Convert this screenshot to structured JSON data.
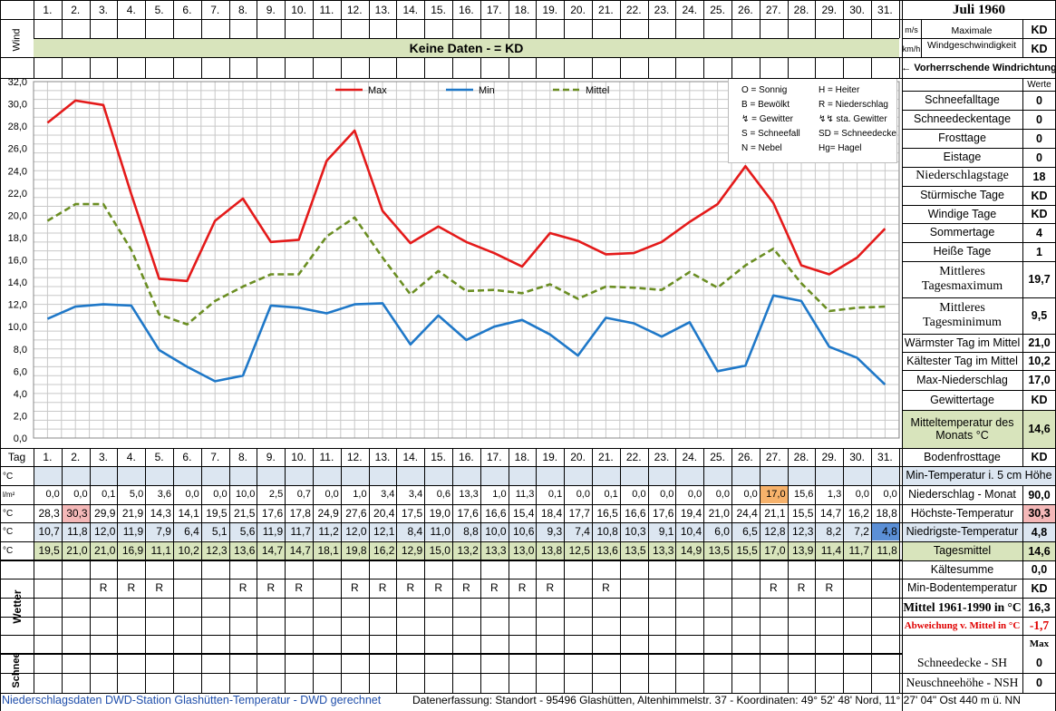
{
  "header": {
    "title": "Juli 1960",
    "days": [
      "1.",
      "2.",
      "3.",
      "4.",
      "5.",
      "6.",
      "7.",
      "8.",
      "9.",
      "10.",
      "11.",
      "12.",
      "13.",
      "14.",
      "15.",
      "16.",
      "17.",
      "18.",
      "19.",
      "20.",
      "21.",
      "22.",
      "23.",
      "24.",
      "25.",
      "26.",
      "27.",
      "28.",
      "29.",
      "30.",
      "31."
    ],
    "wind_label": "Wind",
    "unit_ms": "m/s",
    "unit_kmh": "km/h",
    "max_wind_label": "Maximale Windgeschwindigkeit",
    "max_wind_ms": "KD",
    "max_wind_kmh": "KD",
    "no_data_banner": "Keine Daten -  = KD",
    "wind_direction_label": "← Vorherrschende Windrichtung"
  },
  "legend": {
    "max": "Max",
    "min": "Min",
    "mittel": "Mittel",
    "symbols": [
      [
        "O = Sonnig",
        "H = Heiter"
      ],
      [
        "B = Bewölkt",
        "R = Niederschlag"
      ],
      [
        "= Gewitter",
        "sta. Gewitter"
      ],
      [
        "S = Schneefall",
        "SD = Schneedecke"
      ],
      [
        "N = Nebel",
        "Hg= Hagel"
      ]
    ]
  },
  "colors": {
    "max": "#e41a1a",
    "min": "#1f78c8",
    "mittel": "#6b8e23",
    "highlight_orange": "#f7b26b",
    "highlight_pink": "#f4b8b8",
    "highlight_blue": "#5b8fd6",
    "row_blue_bg": "#dce6f1",
    "row_green_bg": "#d8e4bc",
    "banner_bg": "#d8e4bc"
  },
  "chart_data": {
    "type": "line",
    "x": [
      "1.",
      "2.",
      "3.",
      "4.",
      "5.",
      "6.",
      "7.",
      "8.",
      "9.",
      "10.",
      "11.",
      "12.",
      "13.",
      "14.",
      "15.",
      "16.",
      "17.",
      "18.",
      "19.",
      "20.",
      "21.",
      "22.",
      "23.",
      "24.",
      "25.",
      "26.",
      "27.",
      "28.",
      "29.",
      "30.",
      "31."
    ],
    "ylim": [
      0,
      32
    ],
    "yticks": [
      "0,0",
      "2,0",
      "4,0",
      "6,0",
      "8,0",
      "10,0",
      "12,0",
      "14,0",
      "16,0",
      "18,0",
      "20,0",
      "22,0",
      "24,0",
      "26,0",
      "28,0",
      "30,0",
      "32,0"
    ],
    "grid": true,
    "legend_position": "top",
    "series": [
      {
        "name": "Max",
        "values": [
          28.3,
          30.3,
          29.9,
          21.9,
          14.3,
          14.1,
          19.5,
          21.5,
          17.6,
          17.8,
          24.9,
          27.6,
          20.4,
          17.5,
          19.0,
          17.6,
          16.6,
          15.4,
          18.4,
          17.7,
          16.5,
          16.6,
          17.6,
          19.4,
          21.0,
          24.4,
          21.1,
          15.5,
          14.7,
          16.2,
          18.8
        ]
      },
      {
        "name": "Min",
        "values": [
          10.7,
          11.8,
          12.0,
          11.9,
          7.9,
          6.4,
          5.1,
          5.6,
          11.9,
          11.7,
          11.2,
          12.0,
          12.1,
          8.4,
          11.0,
          8.8,
          10.0,
          10.6,
          9.3,
          7.4,
          10.8,
          10.3,
          9.1,
          10.4,
          6.0,
          6.5,
          12.8,
          12.3,
          8.2,
          7.2,
          4.8
        ]
      },
      {
        "name": "Mittel",
        "values": [
          19.5,
          21.0,
          21.0,
          16.9,
          11.1,
          10.2,
          12.3,
          13.6,
          14.7,
          14.7,
          18.1,
          19.8,
          16.2,
          12.9,
          15.0,
          13.2,
          13.3,
          13.0,
          13.8,
          12.5,
          13.6,
          13.5,
          13.3,
          14.9,
          13.5,
          15.5,
          17.0,
          13.9,
          11.4,
          11.7,
          11.8
        ]
      }
    ]
  },
  "table": {
    "tag_label": "Tag",
    "rows": [
      {
        "unit": "°C",
        "key": "min5cm",
        "values": [
          "",
          "",
          "",
          "",
          "",
          "",
          "",
          "",
          "",
          "",
          "",
          "",
          "",
          "",
          "",
          "",
          "",
          "",
          "",
          "",
          "",
          "",
          "",
          "",
          "",
          "",
          "",
          "",
          "",
          "",
          ""
        ]
      },
      {
        "unit": "l/m²",
        "key": "niederschlag",
        "values": [
          "0,0",
          "0,0",
          "0,1",
          "5,0",
          "3,6",
          "0,0",
          "0,0",
          "10,0",
          "2,5",
          "0,7",
          "0,0",
          "1,0",
          "3,4",
          "3,4",
          "0,6",
          "13,3",
          "1,0",
          "11,3",
          "0,1",
          "0,0",
          "0,1",
          "0,0",
          "0,0",
          "0,0",
          "0,0",
          "0,0",
          "17,0",
          "15,6",
          "1,3",
          "0,0",
          "0,0"
        ]
      },
      {
        "unit": "°C",
        "key": "hoechst",
        "values": [
          "28,3",
          "30,3",
          "29,9",
          "21,9",
          "14,3",
          "14,1",
          "19,5",
          "21,5",
          "17,6",
          "17,8",
          "24,9",
          "27,6",
          "20,4",
          "17,5",
          "19,0",
          "17,6",
          "16,6",
          "15,4",
          "18,4",
          "17,7",
          "16,5",
          "16,6",
          "17,6",
          "19,4",
          "21,0",
          "24,4",
          "21,1",
          "15,5",
          "14,7",
          "16,2",
          "18,8"
        ]
      },
      {
        "unit": "°C",
        "key": "niedrigst",
        "values": [
          "10,7",
          "11,8",
          "12,0",
          "11,9",
          "7,9",
          "6,4",
          "5,1",
          "5,6",
          "11,9",
          "11,7",
          "11,2",
          "12,0",
          "12,1",
          "8,4",
          "11,0",
          "8,8",
          "10,0",
          "10,6",
          "9,3",
          "7,4",
          "10,8",
          "10,3",
          "9,1",
          "10,4",
          "6,0",
          "6,5",
          "12,8",
          "12,3",
          "8,2",
          "7,2",
          "4,8"
        ]
      },
      {
        "unit": "°C",
        "key": "mittel",
        "values": [
          "19,5",
          "21,0",
          "21,0",
          "16,9",
          "11,1",
          "10,2",
          "12,3",
          "13,6",
          "14,7",
          "14,7",
          "18,1",
          "19,8",
          "16,2",
          "12,9",
          "15,0",
          "13,2",
          "13,3",
          "13,0",
          "13,8",
          "12,5",
          "13,6",
          "13,5",
          "13,3",
          "14,9",
          "13,5",
          "15,5",
          "17,0",
          "13,9",
          "11,4",
          "11,7",
          "11,8"
        ]
      }
    ],
    "wetter_label": "Wetter",
    "wetter_row1": [
      "",
      "",
      "R",
      "R",
      "R",
      "",
      "",
      "R",
      "R",
      "R",
      "",
      "R",
      "R",
      "R",
      "R",
      "R",
      "R",
      "R",
      "R",
      "",
      "R",
      "",
      "",
      "",
      "",
      "",
      "R",
      "R",
      "R",
      "",
      ""
    ],
    "schnee_label": "Schnee"
  },
  "stats": {
    "werte_label": "Werte",
    "items": [
      {
        "label": "Schneefalltage",
        "value": "0"
      },
      {
        "label": "Schneedeckentage",
        "value": "0"
      },
      {
        "label": "Frosttage",
        "value": "0"
      },
      {
        "label": "Eistage",
        "value": "0"
      },
      {
        "label": "Niederschlagstage",
        "value": "18"
      },
      {
        "label": "Stürmische Tage",
        "value": "KD"
      },
      {
        "label": "Windige Tage",
        "value": "KD"
      },
      {
        "label": "Sommertage",
        "value": "4"
      },
      {
        "label": "Heiße Tage",
        "value": "1"
      },
      {
        "label": "Mittleres Tagesmaximum",
        "value": "19,7"
      },
      {
        "label": "Mittleres Tagesminimum",
        "value": "9,5"
      },
      {
        "label": "Wärmster Tag im Mittel",
        "value": "21,0"
      },
      {
        "label": "Kältester Tag im Mittel",
        "value": "10,2"
      },
      {
        "label": "Max-Niederschlag",
        "value": "17,0"
      },
      {
        "label": "Gewittertage",
        "value": "KD"
      },
      {
        "label": "Mitteltemperatur des Monats °C",
        "value": "14,6"
      },
      {
        "label": "Bodenfrosttage",
        "value": "KD"
      }
    ],
    "min5cm_label": "Min-Temperatur i. 5 cm Höhe",
    "niederschlag_monat_label": "Niederschlag - Monat",
    "niederschlag_monat_value": "90,0",
    "hoechst_label": "Höchste-Temperatur",
    "hoechst_value": "30,3",
    "niedrigst_label": "Niedrigste-Temperatur",
    "niedrigst_value": "4,8",
    "tagesmittel_label": "Tagesmittel",
    "tagesmittel_value": "14,6",
    "kaeltesumme_label": "Kältesumme",
    "kaeltesumme_value": "0,0",
    "minboden_label": "Min-Bodentemperatur",
    "minboden_value": "KD",
    "mittel_ref_label": "Mittel 1961-1990 in °C",
    "mittel_ref_value": "16,3",
    "abweichung_label": "Abweichung v. Mittel in °C",
    "abweichung_value": "-1,7",
    "max_label": "Max",
    "schneedecke_label": "Schneedecke -  SH",
    "schneedecke_value": "0",
    "neuschnee_label": "Neuschneehöhe - NSH",
    "neuschnee_value": "0"
  },
  "footer": {
    "left": "Niederschlagsdaten DWD-Station Glashütten-Temperatur -  DWD gerechnet",
    "right": "Datenerfassung:  Standort -  95496  Glashütten, Altenhimmelstr. 37 - Koordinaten:  49° 52' 48' Nord,   11° 27' 04\" Ost   440 m ü. NN"
  }
}
